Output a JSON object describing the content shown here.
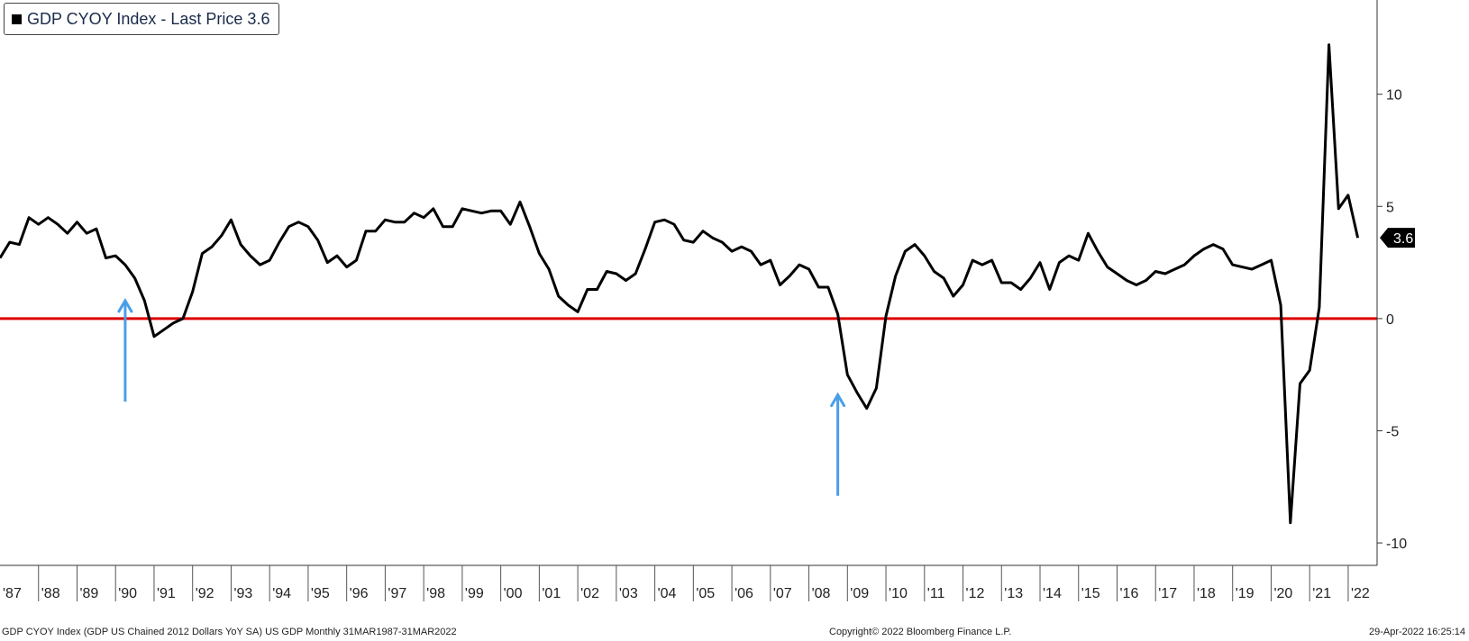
{
  "legend": {
    "label": "GDP CYOY Index - Last Price 3.6"
  },
  "footer": {
    "left": "GDP CYOY Index (GDP US Chained 2012 Dollars YoY SA) US GDP  Monthly 31MAR1987-31MAR2022",
    "center": "Copyright© 2022 Bloomberg Finance L.P.",
    "right": "29-Apr-2022 16:25:14"
  },
  "colors": {
    "line": "#000000",
    "zero_line": "#dd0000",
    "arrow": "#4a9ee8",
    "last_badge": "#000000"
  },
  "chart_data": {
    "type": "line",
    "title": "GDP CYOY Index - Last Price 3.6",
    "xlabel": "",
    "ylabel": "",
    "x_start": 1987.0,
    "x_step": 0.25,
    "ylim": [
      -11,
      14.2
    ],
    "xlim": [
      1987.0,
      2022.75
    ],
    "yticks": [
      10,
      5,
      0,
      -5,
      -10
    ],
    "ytick_labels": [
      "10",
      "5",
      "0",
      "-5",
      "-10"
    ],
    "year_labels": [
      "'87",
      "'88",
      "'89",
      "'90",
      "'91",
      "'92",
      "'93",
      "'94",
      "'95",
      "'96",
      "'97",
      "'98",
      "'99",
      "'00",
      "'01",
      "'02",
      "'03",
      "'04",
      "'05",
      "'06",
      "'07",
      "'08",
      "'09",
      "'10",
      "'11",
      "'12",
      "'13",
      "'14",
      "'15",
      "'16",
      "'17",
      "'18",
      "'19",
      "'20",
      "'21",
      "'22"
    ],
    "last_value": "3.6",
    "reference_line": 0,
    "series": [
      {
        "name": "GDP CYOY Index",
        "values": [
          2.7,
          3.4,
          3.3,
          4.5,
          4.2,
          4.5,
          4.2,
          3.8,
          4.3,
          3.8,
          4.0,
          2.7,
          2.8,
          2.4,
          1.8,
          0.8,
          -0.8,
          -0.5,
          -0.2,
          0.0,
          1.2,
          2.9,
          3.2,
          3.7,
          4.4,
          3.3,
          2.8,
          2.4,
          2.6,
          3.4,
          4.1,
          4.3,
          4.1,
          3.5,
          2.5,
          2.8,
          2.3,
          2.6,
          3.9,
          3.9,
          4.4,
          4.3,
          4.3,
          4.7,
          4.5,
          4.9,
          4.1,
          4.1,
          4.9,
          4.8,
          4.7,
          4.8,
          4.8,
          4.2,
          5.2,
          4.1,
          2.9,
          2.2,
          1.0,
          0.6,
          0.3,
          1.3,
          1.3,
          2.1,
          2.0,
          1.7,
          2.0,
          3.1,
          4.3,
          4.4,
          4.2,
          3.5,
          3.4,
          3.9,
          3.6,
          3.4,
          3.0,
          3.2,
          3.0,
          2.4,
          2.6,
          1.5,
          1.9,
          2.4,
          2.2,
          1.4,
          1.4,
          0.2,
          -2.5,
          -3.3,
          -4.0,
          -3.1,
          0.1,
          1.9,
          3.0,
          3.3,
          2.8,
          2.1,
          1.8,
          1.0,
          1.5,
          2.6,
          2.4,
          2.6,
          1.6,
          1.6,
          1.3,
          1.8,
          2.5,
          1.3,
          2.5,
          2.8,
          2.6,
          3.8,
          3.0,
          2.3,
          2.0,
          1.7,
          1.5,
          1.7,
          2.1,
          2.0,
          2.2,
          2.4,
          2.8,
          3.1,
          3.3,
          3.1,
          2.4,
          2.3,
          2.2,
          2.4,
          2.6,
          0.6,
          -9.1,
          -2.9,
          -2.3,
          0.5,
          12.2,
          4.9,
          5.5,
          3.6
        ]
      }
    ],
    "annotations": [
      {
        "type": "arrow",
        "x": 1990.25,
        "y_from": -3.7,
        "y_to": 0.8
      },
      {
        "type": "arrow",
        "x": 2008.75,
        "y_from": -7.9,
        "y_to": -3.4
      }
    ]
  }
}
